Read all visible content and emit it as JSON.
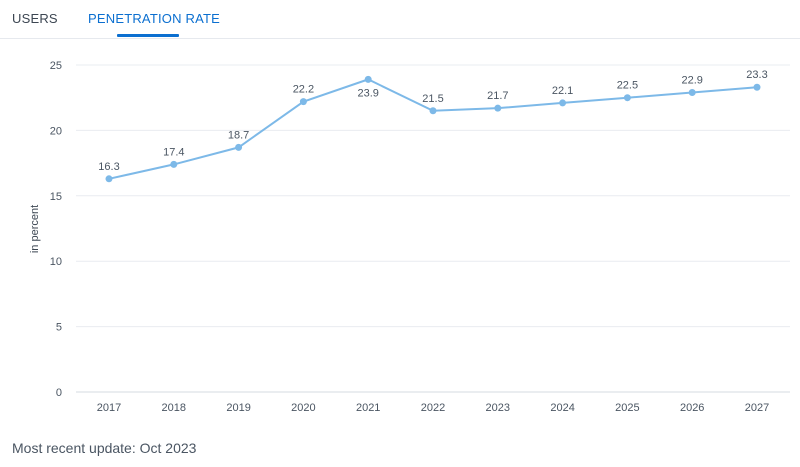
{
  "tabs": [
    {
      "label": "USERS",
      "active": false
    },
    {
      "label": "PENETRATION RATE",
      "active": true
    }
  ],
  "footer": {
    "update_text": "Most recent update: Oct 2023"
  },
  "colors": {
    "accent": "#0b6fd0",
    "line": "#7db9e8",
    "grid": "#e9ecf0"
  },
  "chart_data": {
    "type": "line",
    "categories": [
      "2017",
      "2018",
      "2019",
      "2020",
      "2021",
      "2022",
      "2023",
      "2024",
      "2025",
      "2026",
      "2027"
    ],
    "series": [
      {
        "values": [
          16.3,
          17.4,
          18.7,
          22.2,
          23.9,
          21.5,
          21.7,
          22.1,
          22.5,
          22.9,
          23.3
        ]
      }
    ],
    "data_labels": [
      "16.3",
      "17.4",
      "18.7",
      "22.2",
      "23.9",
      "21.5",
      "21.7",
      "22.1",
      "22.5",
      "22.9",
      "23.3"
    ],
    "ylabel": "in percent",
    "ylim": [
      0,
      25
    ],
    "yticks": [
      0,
      5,
      10,
      15,
      20,
      25
    ],
    "grid": true
  }
}
